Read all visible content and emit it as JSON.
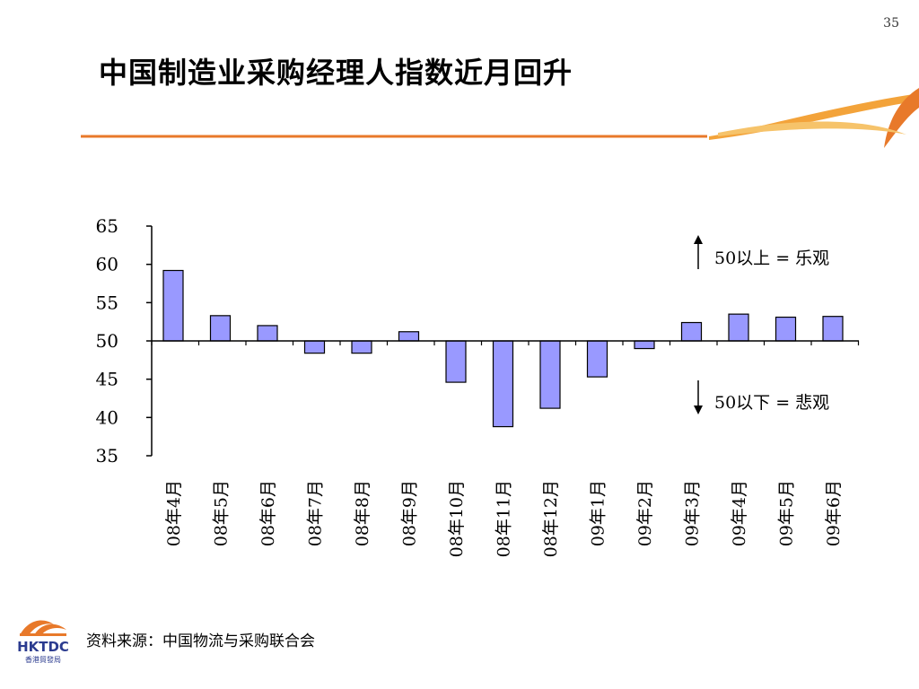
{
  "page": {
    "number": "35",
    "title": "中国制造业采购经理人指数近月回升",
    "source_note": "资料来源：中国物流与采购联合会",
    "logo_text": "HKTDC",
    "logo_subtext": "香港貿發局",
    "colors": {
      "accent_orange": "#E8792A",
      "bar_fill": "#9999FF",
      "bar_stroke": "#000000"
    }
  },
  "annotations": {
    "above": "50以上 = 乐观",
    "below": "50以下 = 悲观"
  },
  "chart_data": {
    "type": "bar",
    "categories": [
      "08年4月",
      "08年5月",
      "08年6月",
      "08年7月",
      "08年8月",
      "08年9月",
      "08年10月",
      "08年11月",
      "08年12月",
      "09年1月",
      "09年2月",
      "09年3月",
      "09年4月",
      "09年5月",
      "09年6月"
    ],
    "values": [
      59.2,
      53.3,
      52.0,
      48.4,
      48.4,
      51.2,
      44.6,
      38.8,
      41.2,
      45.3,
      49.0,
      52.4,
      53.5,
      53.1,
      53.2
    ],
    "baseline": 50,
    "ylim": [
      35,
      65
    ],
    "yticks": [
      65,
      60,
      55,
      50,
      45,
      40,
      35
    ],
    "title": "",
    "xlabel": "",
    "ylabel": "",
    "grid": false
  }
}
